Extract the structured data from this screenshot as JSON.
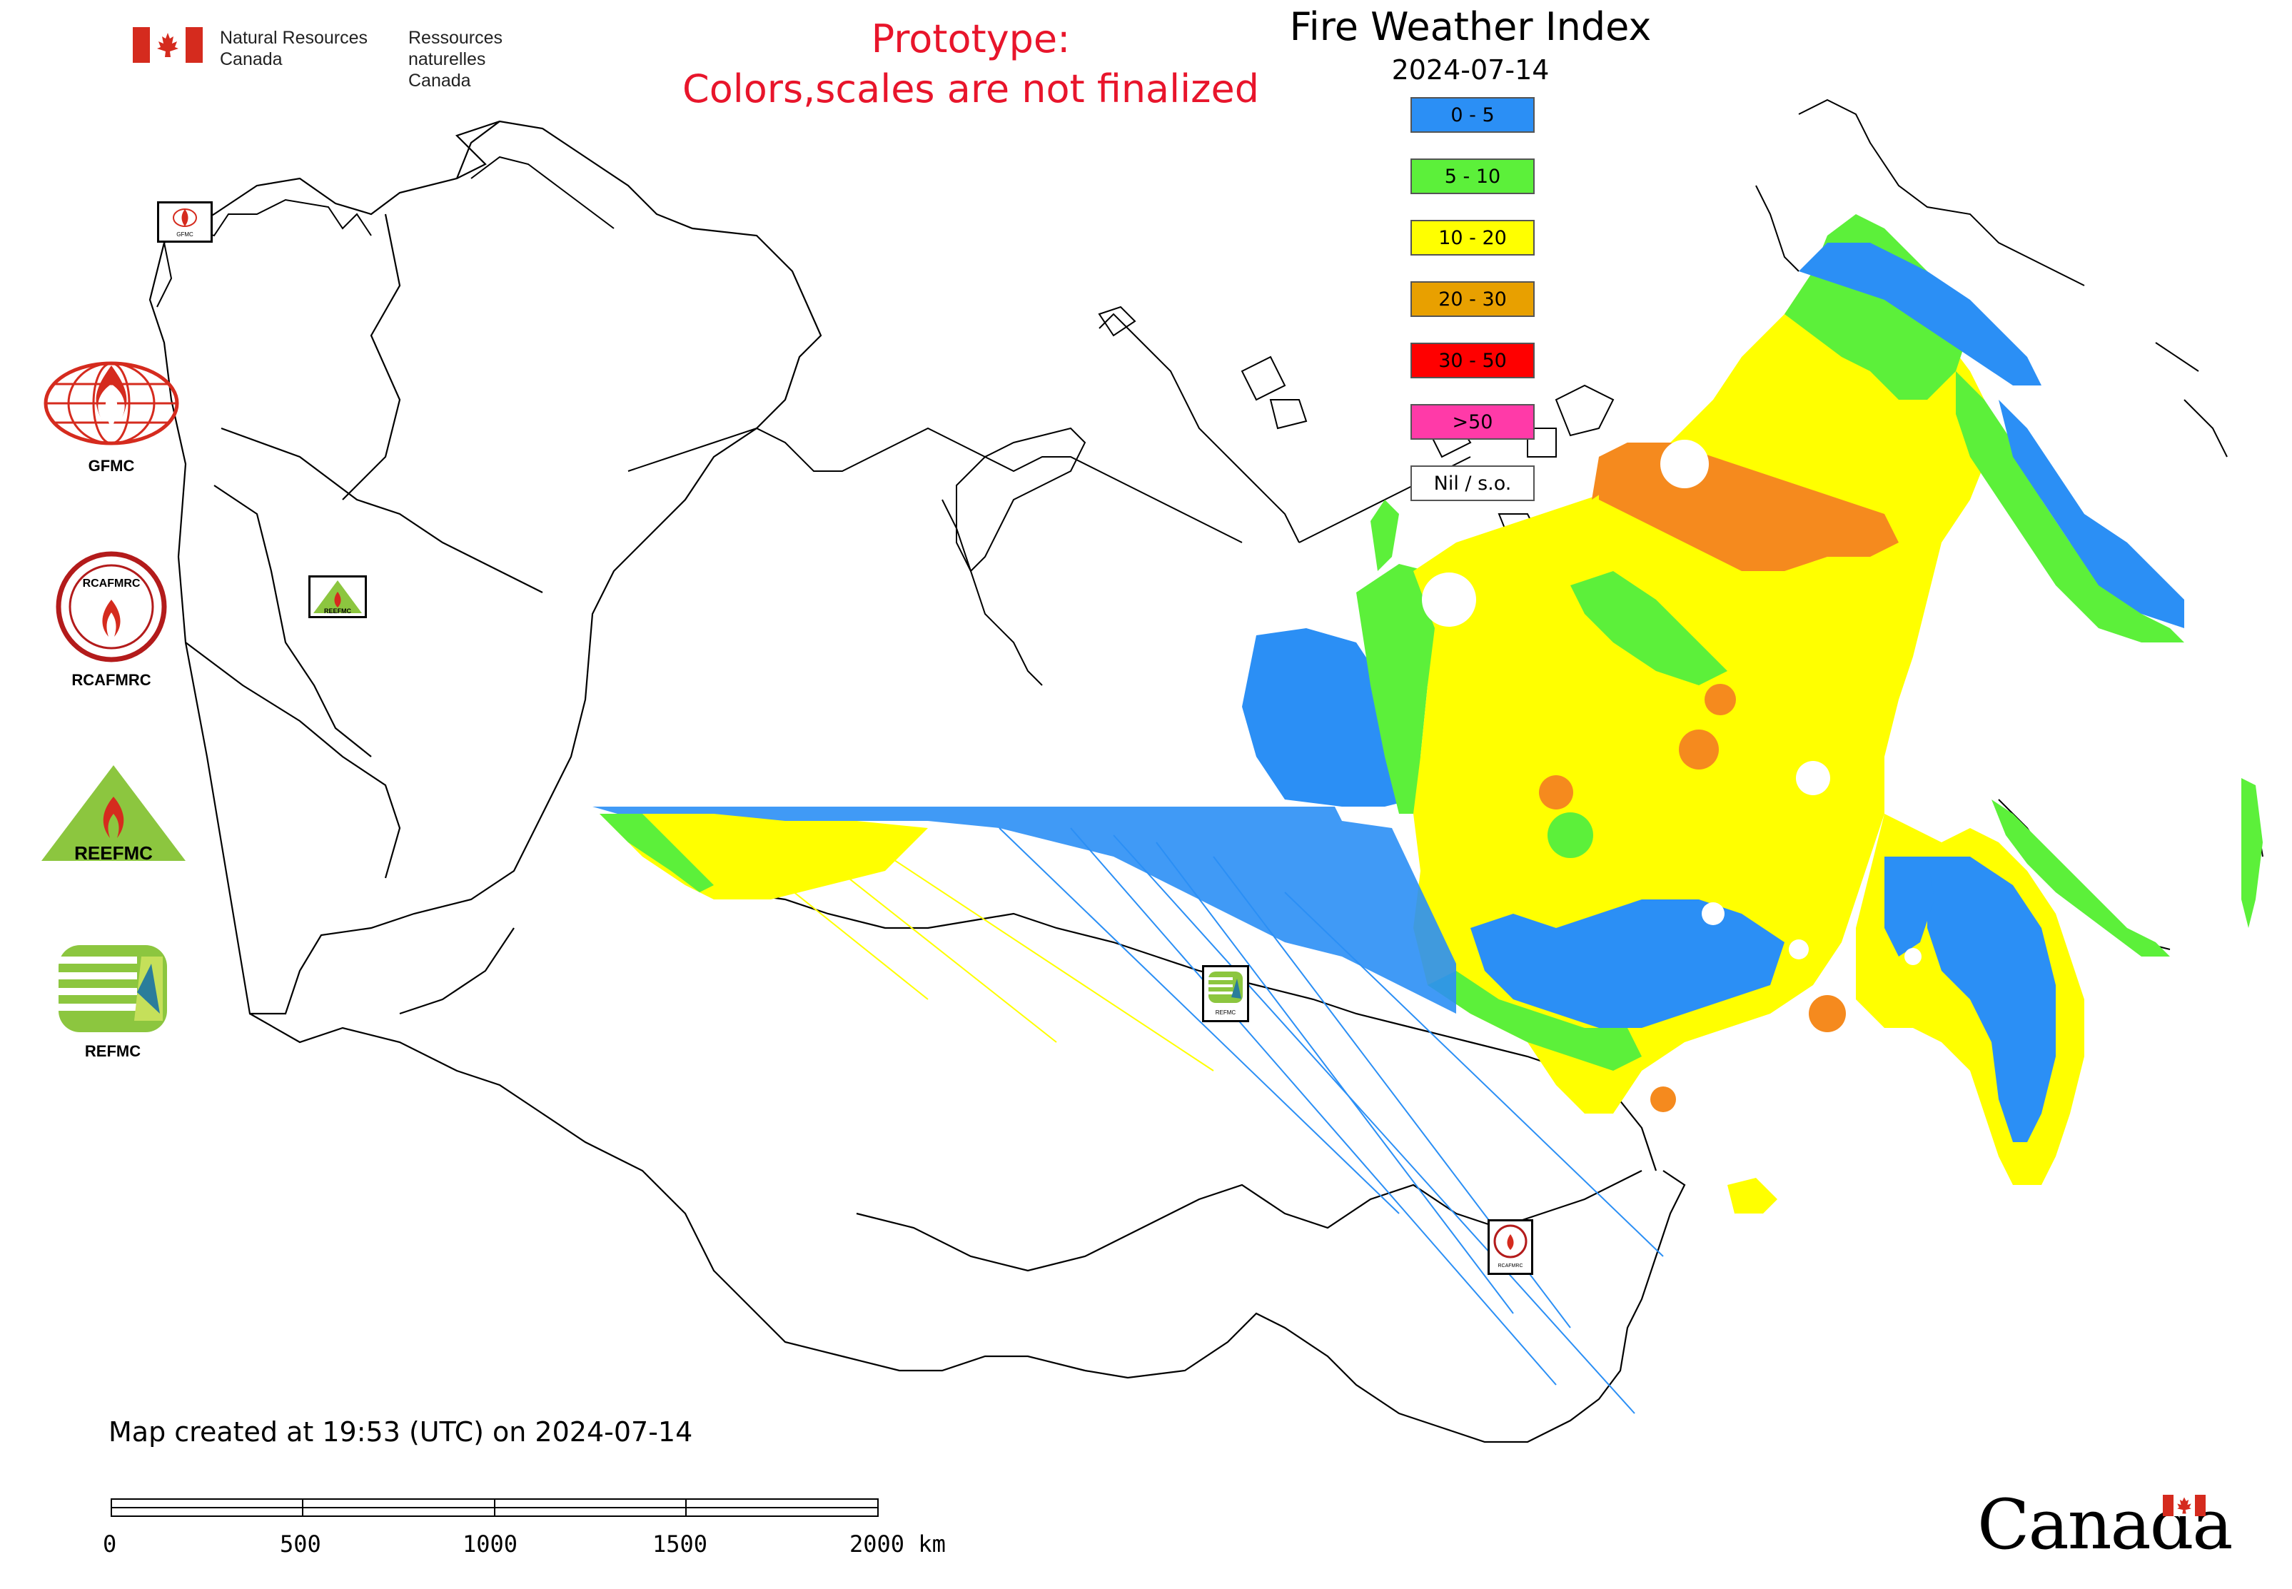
{
  "header": {
    "gov_en_line1": "Natural Resources",
    "gov_en_line2": "Canada",
    "gov_fr_line1": "Ressources naturelles",
    "gov_fr_line2": "Canada",
    "prototype_line1": "Prototype:",
    "prototype_line2": "Colors,scales are not finalized"
  },
  "map": {
    "title": "Fire Weather Index",
    "date": "2024-07-14",
    "created_text": "Map created at 19:53 (UTC) on 2024-07-14"
  },
  "legend": {
    "items": [
      {
        "label": "0 - 5",
        "color": "#2b8ff5"
      },
      {
        "label": "5 - 10",
        "color": "#5cf03a"
      },
      {
        "label": "10 - 20",
        "color": "#ffff00"
      },
      {
        "label": "20 - 30",
        "color": "#e8a000"
      },
      {
        "label": "30 - 50",
        "color": "#ff0000"
      },
      {
        "label": ">50",
        "color": "#ff3aa8"
      },
      {
        "label": "Nil / s.o.",
        "color": "#ffffff"
      }
    ]
  },
  "logos": [
    {
      "name": "GFMC",
      "label": "GFMC",
      "icon": "gfmc-logo-icon"
    },
    {
      "name": "RCAFMRC",
      "label": "RCAFMRC",
      "icon": "rcafmrc-logo-icon",
      "inner_text": "RCAFMRC"
    },
    {
      "name": "REEFMC",
      "label": "REEFMC",
      "icon": "reefmc-logo-icon",
      "inner_text": "REEFMC"
    },
    {
      "name": "REFMC",
      "label": "REFMC",
      "icon": "refmc-logo-icon"
    }
  ],
  "map_markers": [
    {
      "label": "GFMC",
      "icon": "gfmc-marker-icon"
    },
    {
      "label": "REEFMC",
      "icon": "reefmc-marker-icon"
    },
    {
      "label": "REFMC",
      "icon": "refmc-marker-icon"
    },
    {
      "label": "RCAFMRC",
      "icon": "rcafmrc-marker-icon"
    }
  ],
  "scale_bar": {
    "labels": [
      "0",
      "500",
      "1000",
      "1500",
      "2000 km"
    ]
  },
  "footer": {
    "wordmark": "Canada",
    "colors": {
      "red": "#d52b1e"
    }
  }
}
